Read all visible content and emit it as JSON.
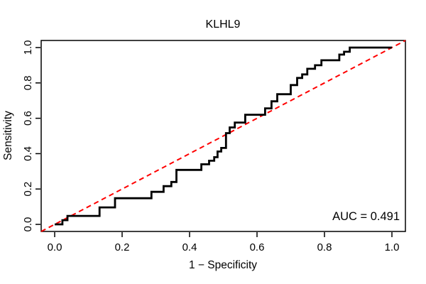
{
  "title": "KLHL9",
  "colors": {
    "background": "#FFFFFF",
    "curve": "#000000",
    "diagonal": "#FF0000",
    "axis": "#000000",
    "text": "#000000"
  },
  "annotation": {
    "auc_label": "AUC = 0.491",
    "auc_value": 0.491
  },
  "chart_data": {
    "type": "line",
    "subtype": "roc-step-curve",
    "title": "KLHL9",
    "xlabel": "1 − Specificity",
    "ylabel": "Sensitivity",
    "xlim": [
      -0.04,
      1.04
    ],
    "ylim": [
      -0.04,
      1.04
    ],
    "grid": false,
    "legend": "none",
    "annotation": "AUC = 0.491",
    "auc": 0.491,
    "x_tick_values": [
      0.0,
      0.2,
      0.4,
      0.6,
      0.8,
      1.0
    ],
    "x_tick_labels": [
      "0.0",
      "0.2",
      "0.4",
      "0.6",
      "0.8",
      "1.0"
    ],
    "y_tick_values": [
      0.0,
      0.2,
      0.4,
      0.6,
      0.8,
      1.0
    ],
    "y_tick_labels": [
      "0.0",
      "0.2",
      "0.4",
      "0.6",
      "0.8",
      "1.0"
    ],
    "series": [
      {
        "name": "ROC curve",
        "color": "#000000",
        "line_style": "solid",
        "points": [
          [
            0.0,
            0.0
          ],
          [
            0.023,
            0.0
          ],
          [
            0.023,
            0.024
          ],
          [
            0.038,
            0.024
          ],
          [
            0.038,
            0.048
          ],
          [
            0.133,
            0.048
          ],
          [
            0.133,
            0.096
          ],
          [
            0.179,
            0.096
          ],
          [
            0.179,
            0.148
          ],
          [
            0.287,
            0.148
          ],
          [
            0.287,
            0.184
          ],
          [
            0.323,
            0.184
          ],
          [
            0.323,
            0.216
          ],
          [
            0.346,
            0.216
          ],
          [
            0.346,
            0.24
          ],
          [
            0.361,
            0.24
          ],
          [
            0.361,
            0.308
          ],
          [
            0.435,
            0.308
          ],
          [
            0.435,
            0.34
          ],
          [
            0.458,
            0.34
          ],
          [
            0.458,
            0.36
          ],
          [
            0.473,
            0.36
          ],
          [
            0.473,
            0.38
          ],
          [
            0.483,
            0.38
          ],
          [
            0.483,
            0.412
          ],
          [
            0.494,
            0.412
          ],
          [
            0.494,
            0.432
          ],
          [
            0.508,
            0.432
          ],
          [
            0.508,
            0.516
          ],
          [
            0.519,
            0.516
          ],
          [
            0.519,
            0.548
          ],
          [
            0.534,
            0.548
          ],
          [
            0.534,
            0.576
          ],
          [
            0.565,
            0.576
          ],
          [
            0.565,
            0.62
          ],
          [
            0.624,
            0.62
          ],
          [
            0.624,
            0.656
          ],
          [
            0.643,
            0.656
          ],
          [
            0.643,
            0.696
          ],
          [
            0.66,
            0.696
          ],
          [
            0.66,
            0.736
          ],
          [
            0.7,
            0.736
          ],
          [
            0.7,
            0.788
          ],
          [
            0.719,
            0.788
          ],
          [
            0.719,
            0.828
          ],
          [
            0.734,
            0.828
          ],
          [
            0.734,
            0.848
          ],
          [
            0.749,
            0.848
          ],
          [
            0.749,
            0.88
          ],
          [
            0.772,
            0.88
          ],
          [
            0.772,
            0.9
          ],
          [
            0.791,
            0.9
          ],
          [
            0.791,
            0.928
          ],
          [
            0.844,
            0.928
          ],
          [
            0.844,
            0.96
          ],
          [
            0.858,
            0.96
          ],
          [
            0.858,
            0.976
          ],
          [
            0.875,
            0.976
          ],
          [
            0.875,
            1.0
          ],
          [
            1.0,
            1.0
          ]
        ]
      },
      {
        "name": "chance diagonal",
        "color": "#FF0000",
        "line_style": "dashed",
        "points": [
          [
            -0.04,
            -0.04
          ],
          [
            1.04,
            1.04
          ]
        ]
      }
    ]
  }
}
